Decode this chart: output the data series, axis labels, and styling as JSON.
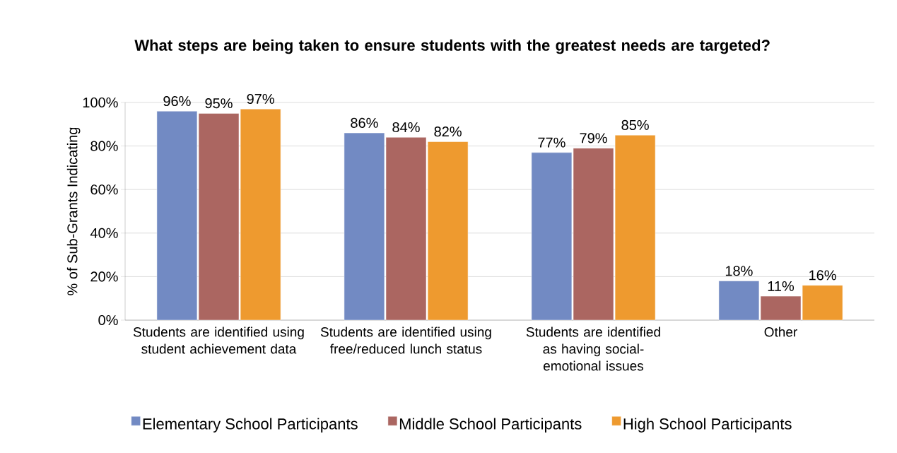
{
  "chart_data": {
    "type": "bar",
    "title": "What steps are being taken to ensure students with the greatest needs are targeted?",
    "ylabel": "% of Sub-Grants Indicating",
    "categories": [
      "Students are identified using student achievement data",
      "Students are identified using free/reduced lunch status",
      "Students are identified as having social-emotional issues",
      "Other"
    ],
    "series": [
      {
        "name": "Elementary School Participants",
        "color": "#728ac3",
        "values": [
          96,
          86,
          77,
          18
        ],
        "value_labels": [
          "96%",
          "86%",
          "77%",
          "18%"
        ]
      },
      {
        "name": "Middle School Participants",
        "color": "#ab6661",
        "values": [
          95,
          84,
          79,
          11
        ],
        "value_labels": [
          "95%",
          "84%",
          "79%",
          "11%"
        ]
      },
      {
        "name": "High School Participants",
        "color": "#ee9a2f",
        "values": [
          97,
          82,
          85,
          16
        ],
        "value_labels": [
          "97%",
          "82%",
          "85%",
          "16%"
        ]
      }
    ],
    "ylim": [
      0,
      100
    ],
    "yticks": [
      {
        "value": 0,
        "label": "0%"
      },
      {
        "value": 20,
        "label": "20%"
      },
      {
        "value": 40,
        "label": "40%"
      },
      {
        "value": 60,
        "label": "60%"
      },
      {
        "value": 80,
        "label": "80%"
      },
      {
        "value": 100,
        "label": "100%"
      }
    ],
    "grid": "y",
    "legend": "bottom"
  }
}
